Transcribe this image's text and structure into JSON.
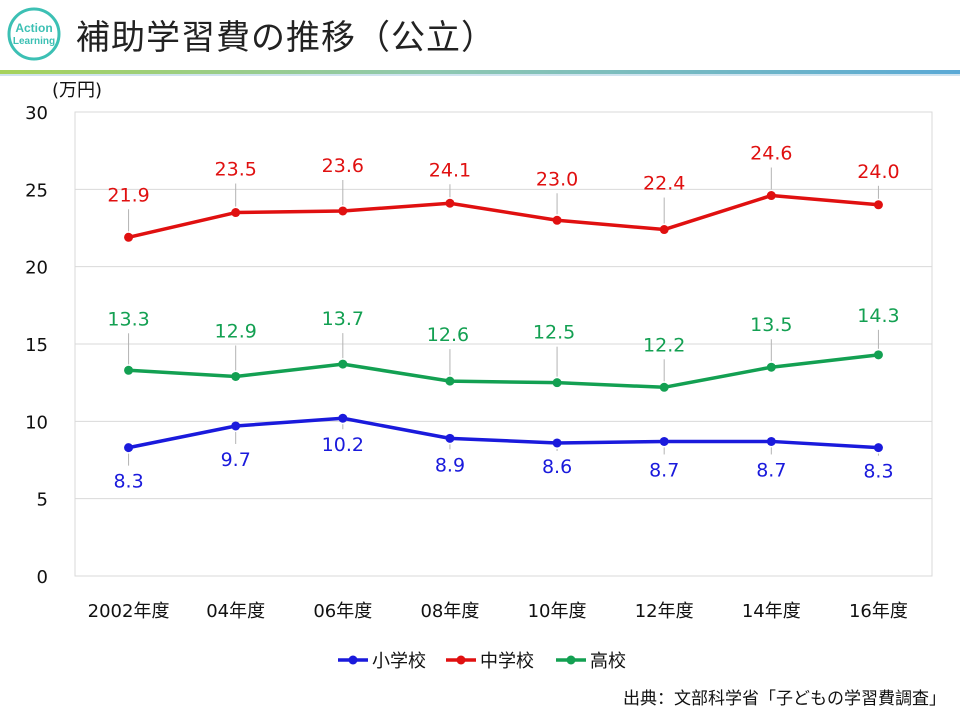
{
  "page": {
    "title": "補助学習費の推移（公立）",
    "source": "出典：文部科学省「子どもの学習費調査」",
    "logo_line1": "Action",
    "logo_line2": "Learning"
  },
  "colors": {
    "logo": "#3cc0b4",
    "bar_green": "#a6d25c",
    "bar_blue": "#5aa9d6",
    "grid": "#d9d9d9",
    "axis_text": "#111111"
  },
  "chart_data": {
    "type": "line",
    "title": "",
    "ylabel": "(万円)",
    "xlabel": "",
    "ylim": [
      0,
      30
    ],
    "yticks": [
      0,
      5,
      10,
      15,
      20,
      25,
      30
    ],
    "grid": true,
    "legend_position": "bottom",
    "categories": [
      "2002年度",
      "04年度",
      "06年度",
      "08年度",
      "10年度",
      "12年度",
      "14年度",
      "16年度"
    ],
    "series": [
      {
        "name": "小学校",
        "color": "#1a1adc",
        "values": [
          8.3,
          9.7,
          10.2,
          8.9,
          8.6,
          8.7,
          8.7,
          8.3
        ],
        "labels": [
          "8.3",
          "9.7",
          "10.2",
          "8.9",
          "8.6",
          "8.7",
          "8.7",
          "8.3"
        ]
      },
      {
        "name": "中学校",
        "color": "#e01010",
        "values": [
          21.9,
          23.5,
          23.6,
          24.1,
          23.0,
          22.4,
          24.6,
          24.0
        ],
        "labels": [
          "21.9",
          "23.5",
          "23.6",
          "24.1",
          "23.0",
          "22.4",
          "24.6",
          "24.0"
        ]
      },
      {
        "name": "高校",
        "color": "#13a052",
        "values": [
          13.3,
          12.9,
          13.7,
          12.6,
          12.5,
          12.2,
          13.5,
          14.3
        ],
        "labels": [
          "13.3",
          "12.9",
          "13.7",
          "12.6",
          "12.5",
          "12.2",
          "13.5",
          "14.3"
        ]
      }
    ]
  }
}
